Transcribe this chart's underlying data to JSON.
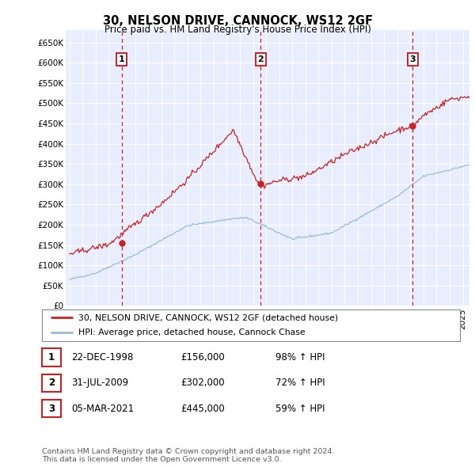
{
  "title": "30, NELSON DRIVE, CANNOCK, WS12 2GF",
  "subtitle": "Price paid vs. HM Land Registry's House Price Index (HPI)",
  "ylabel_ticks": [
    "£0",
    "£50K",
    "£100K",
    "£150K",
    "£200K",
    "£250K",
    "£300K",
    "£350K",
    "£400K",
    "£450K",
    "£500K",
    "£550K",
    "£600K",
    "£650K"
  ],
  "ytick_values": [
    0,
    50000,
    100000,
    150000,
    200000,
    250000,
    300000,
    350000,
    400000,
    450000,
    500000,
    550000,
    600000,
    650000
  ],
  "ylim": [
    0,
    680000
  ],
  "xlim": [
    1994.7,
    2025.5
  ],
  "sales": [
    {
      "date_num": 1998.97,
      "price": 156000,
      "label": "1"
    },
    {
      "date_num": 2009.58,
      "price": 302000,
      "label": "2"
    },
    {
      "date_num": 2021.17,
      "price": 445000,
      "label": "3"
    }
  ],
  "legend_entries": [
    "30, NELSON DRIVE, CANNOCK, WS12 2GF (detached house)",
    "HPI: Average price, detached house, Cannock Chase"
  ],
  "table_rows": [
    {
      "num": "1",
      "date": "22-DEC-1998",
      "price": "£156,000",
      "change": "98% ↑ HPI"
    },
    {
      "num": "2",
      "date": "31-JUL-2009",
      "price": "£302,000",
      "change": "72% ↑ HPI"
    },
    {
      "num": "3",
      "date": "05-MAR-2021",
      "price": "£445,000",
      "change": "59% ↑ HPI"
    }
  ],
  "footnote": "Contains HM Land Registry data © Crown copyright and database right 2024.\nThis data is licensed under the Open Government Licence v3.0.",
  "line_color_red": "#cc2222",
  "line_color_blue": "#99bbdd",
  "background_color": "#e8eeff",
  "grid_color": "#ffffff",
  "vline_color": "#cc2222",
  "box_color": "#cc2222"
}
